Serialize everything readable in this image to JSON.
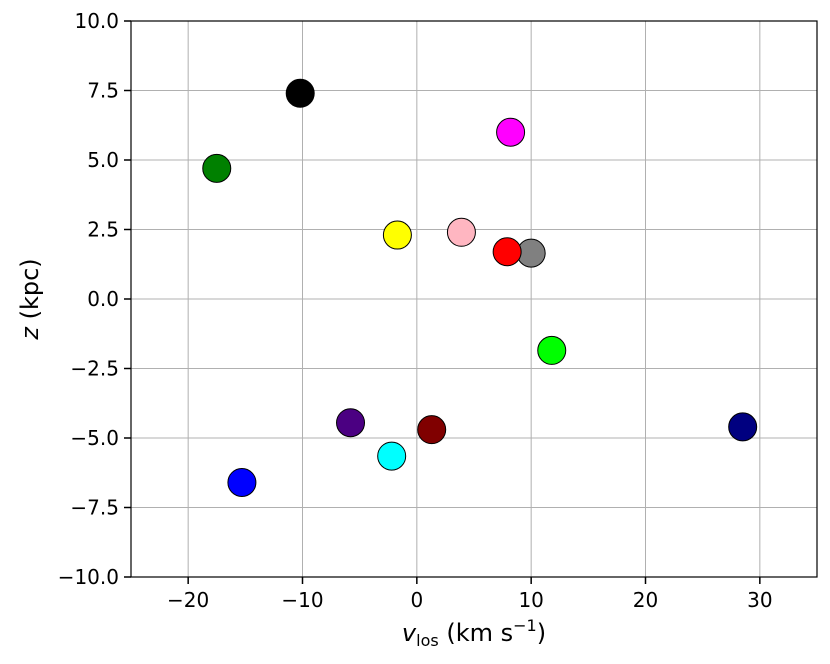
{
  "chart_data": {
    "type": "scatter",
    "title": "",
    "xlabel": "v",
    "xlabel_sub": "los",
    "xlabel_units_open": " (km s",
    "xlabel_units_exp": "−1",
    "xlabel_units_close": ")",
    "ylabel_italic": "z",
    "ylabel_rest": " (kpc)",
    "xlim": [
      -25,
      35
    ],
    "ylim": [
      -10,
      10
    ],
    "xticks": [
      -20,
      -10,
      0,
      10,
      20,
      30
    ],
    "xtick_labels": [
      "−20",
      "−10",
      "0",
      "10",
      "20",
      "30"
    ],
    "yticks": [
      -10,
      -7.5,
      -5,
      -2.5,
      0,
      2.5,
      5,
      7.5,
      10
    ],
    "ytick_labels": [
      "−10.0",
      "−7.5",
      "−5.0",
      "−2.5",
      "0.0",
      "2.5",
      "5.0",
      "7.5",
      "10.0"
    ],
    "grid": true,
    "points": [
      {
        "x": -10.2,
        "y": 7.4,
        "color": "#000000"
      },
      {
        "x": 8.2,
        "y": 6.0,
        "color": "#ff00ff"
      },
      {
        "x": -17.5,
        "y": 4.7,
        "color": "#008000"
      },
      {
        "x": -1.7,
        "y": 2.3,
        "color": "#ffff00"
      },
      {
        "x": 3.9,
        "y": 2.4,
        "color": "#ffb6c1"
      },
      {
        "x": 10.0,
        "y": 1.65,
        "color": "#808080"
      },
      {
        "x": 7.9,
        "y": 1.7,
        "color": "#ff0000"
      },
      {
        "x": 11.8,
        "y": -1.85,
        "color": "#00ff00"
      },
      {
        "x": -5.8,
        "y": -4.45,
        "color": "#4b0082"
      },
      {
        "x": 1.3,
        "y": -4.7,
        "color": "#800000"
      },
      {
        "x": -2.2,
        "y": -5.65,
        "color": "#00ffff"
      },
      {
        "x": -15.3,
        "y": -6.6,
        "color": "#0000ff"
      },
      {
        "x": 28.5,
        "y": -4.6,
        "color": "#000080"
      }
    ]
  }
}
